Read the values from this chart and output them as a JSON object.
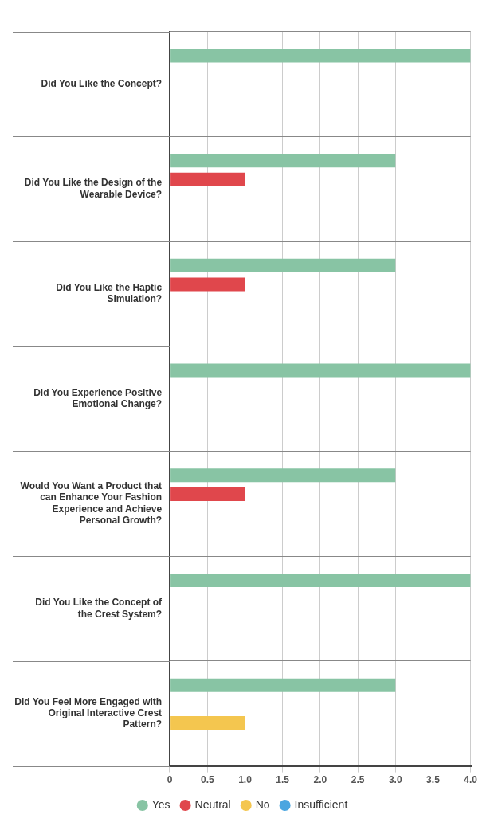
{
  "chart_data": {
    "type": "bar",
    "orientation": "horizontal",
    "categories": [
      "Did You Like the Concept?",
      "Did You Like the Design of the Wearable Device?",
      "Did You Like the Haptic Simulation?",
      "Did You Experience Positive Emotional Change?",
      "Would You Want a Product that can Enhance Your Fashion Experience and Achieve Personal Growth?",
      "Did You Like the Concept of the Crest System?",
      "Did You Feel More Engaged with Original Interactive Crest Pattern?"
    ],
    "series": [
      {
        "name": "Yes",
        "color": "#88c4a4",
        "values": [
          4,
          3,
          3,
          4,
          3,
          4,
          3
        ]
      },
      {
        "name": "Neutral",
        "color": "#e0474c",
        "values": [
          0,
          1,
          1,
          0,
          1,
          0,
          0
        ]
      },
      {
        "name": "No",
        "color": "#f4c64f",
        "values": [
          0,
          0,
          0,
          0,
          0,
          0,
          1
        ]
      },
      {
        "name": "Insufficient",
        "color": "#4ba6e0",
        "values": [
          0,
          0,
          0,
          0,
          0,
          0,
          0
        ]
      }
    ],
    "xlim": [
      0,
      4
    ],
    "xticks": [
      0,
      {
        "value": 0.5,
        "label": "0.5"
      },
      {
        "value": 1,
        "label": "1.0"
      },
      {
        "value": 1.5,
        "label": "1.5"
      },
      {
        "value": 2,
        "label": "2.0"
      },
      {
        "value": 2.5,
        "label": "2.5"
      },
      {
        "value": 3,
        "label": "3.0"
      },
      {
        "value": 3.5,
        "label": "3.5"
      },
      {
        "value": 4,
        "label": "4.0"
      }
    ],
    "grid": true,
    "legend": "bottom"
  }
}
